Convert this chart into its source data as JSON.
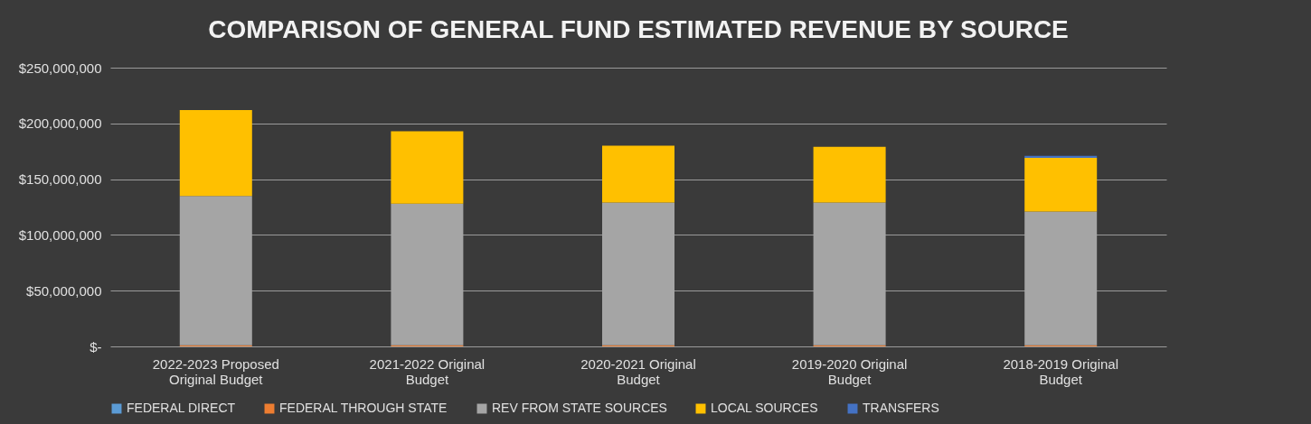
{
  "chart_data": {
    "type": "bar",
    "stacked": true,
    "title": "COMPARISON OF GENERAL FUND ESTIMATED REVENUE BY SOURCE",
    "categories": [
      "2022-2023 Proposed Original Budget",
      "2021-2022 Original Budget",
      "2020-2021 Original Budget",
      "2019-2020 Original Budget",
      "2018-2019 Original Budget"
    ],
    "series": [
      {
        "name": "FEDERAL DIRECT",
        "color": "#5b9bd5",
        "values": [
          0,
          0,
          0,
          0,
          0
        ]
      },
      {
        "name": "FEDERAL THROUGH STATE",
        "color": "#ed7d31",
        "values": [
          1000000,
          1000000,
          1000000,
          1000000,
          1000000
        ]
      },
      {
        "name": "REV FROM STATE SOURCES",
        "color": "#a5a5a5",
        "values": [
          134000000,
          127000000,
          128000000,
          128000000,
          120000000
        ]
      },
      {
        "name": "LOCAL SOURCES",
        "color": "#ffc000",
        "values": [
          77000000,
          65000000,
          51000000,
          50000000,
          48000000
        ]
      },
      {
        "name": "TRANSFERS",
        "color": "#4472c4",
        "values": [
          null,
          null,
          null,
          null,
          2000000
        ]
      }
    ],
    "ylim": [
      0,
      250000000
    ],
    "yticks": [
      {
        "value": 0,
        "label": "$-"
      },
      {
        "value": 50000000,
        "label": "$50,000,000"
      },
      {
        "value": 100000000,
        "label": "$100,000,000"
      },
      {
        "value": 150000000,
        "label": "$150,000,000"
      },
      {
        "value": 200000000,
        "label": "$200,000,000"
      },
      {
        "value": 250000000,
        "label": "$250,000,000"
      }
    ],
    "grid": "y",
    "legend": "bottom"
  }
}
